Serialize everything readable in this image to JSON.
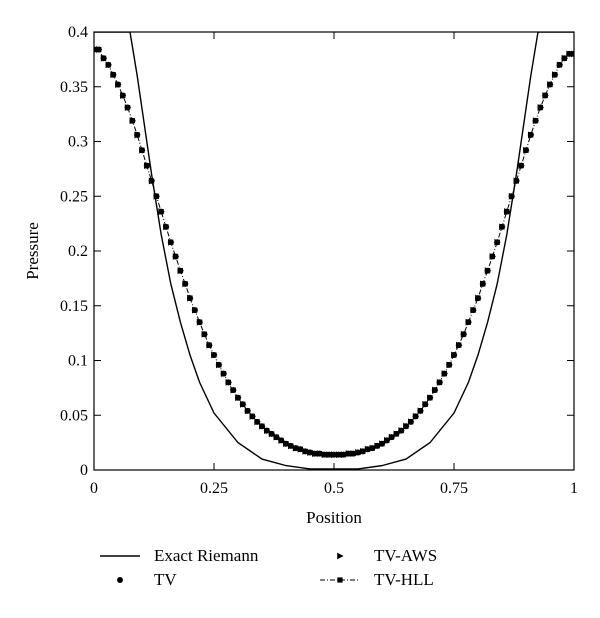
{
  "chart_data": {
    "type": "line",
    "title": "",
    "xlabel": "Position",
    "ylabel": "Pressure",
    "xlim": [
      0,
      1
    ],
    "ylim": [
      0,
      0.4
    ],
    "grid": false,
    "legend_placement": "bottom",
    "x_ticks": [
      {
        "value": 0,
        "label": "0"
      },
      {
        "value": 0.25,
        "label": "0.25"
      },
      {
        "value": 0.5,
        "label": "0.5"
      },
      {
        "value": 0.75,
        "label": "0.75"
      },
      {
        "value": 1,
        "label": "1"
      }
    ],
    "y_ticks": [
      {
        "value": 0,
        "label": "0"
      },
      {
        "value": 0.05,
        "label": "0.05"
      },
      {
        "value": 0.1,
        "label": "0.1"
      },
      {
        "value": 0.15,
        "label": "0.15"
      },
      {
        "value": 0.2,
        "label": "0.2"
      },
      {
        "value": 0.25,
        "label": "0.25"
      },
      {
        "value": 0.3,
        "label": "0.3"
      },
      {
        "value": 0.35,
        "label": "0.35"
      },
      {
        "value": 0.4,
        "label": "0.4"
      }
    ],
    "series": [
      {
        "name": "Exact Riemann",
        "style": "solid-line",
        "color": "#000000",
        "x": [
          0,
          0.05,
          0.075,
          0.09,
          0.1,
          0.12,
          0.14,
          0.16,
          0.18,
          0.2,
          0.22,
          0.25,
          0.3,
          0.35,
          0.4,
          0.45,
          0.5,
          0.55,
          0.6,
          0.65,
          0.7,
          0.75,
          0.78,
          0.8,
          0.82,
          0.84,
          0.86,
          0.88,
          0.9,
          0.91,
          0.925,
          0.95,
          1
        ],
        "y": [
          0.4,
          0.4,
          0.4,
          0.36,
          0.33,
          0.27,
          0.215,
          0.17,
          0.135,
          0.105,
          0.08,
          0.052,
          0.025,
          0.01,
          0.004,
          0.001,
          0.001,
          0.001,
          0.004,
          0.01,
          0.025,
          0.052,
          0.08,
          0.105,
          0.135,
          0.17,
          0.215,
          0.27,
          0.33,
          0.36,
          0.4,
          0.4,
          0.4
        ]
      },
      {
        "name": "TV",
        "style": "circle-markers",
        "color": "#000000",
        "x": [
          0,
          0.01,
          0.02,
          0.03,
          0.04,
          0.05,
          0.06,
          0.07,
          0.08,
          0.09,
          0.1,
          0.11,
          0.12,
          0.13,
          0.14,
          0.15,
          0.16,
          0.17,
          0.18,
          0.19,
          0.2,
          0.21,
          0.22,
          0.23,
          0.24,
          0.25,
          0.26,
          0.27,
          0.28,
          0.29,
          0.3,
          0.31,
          0.32,
          0.33,
          0.34,
          0.35,
          0.36,
          0.37,
          0.38,
          0.39,
          0.4,
          0.41,
          0.42,
          0.43,
          0.44,
          0.45,
          0.46,
          0.47,
          0.48,
          0.49,
          0.5,
          0.51,
          0.52,
          0.53,
          0.54,
          0.55,
          0.56,
          0.57,
          0.58,
          0.59,
          0.6,
          0.61,
          0.62,
          0.63,
          0.64,
          0.65,
          0.66,
          0.67,
          0.68,
          0.69,
          0.7,
          0.71,
          0.72,
          0.73,
          0.74,
          0.75,
          0.76,
          0.77,
          0.78,
          0.79,
          0.8,
          0.81,
          0.82,
          0.83,
          0.84,
          0.85,
          0.86,
          0.87,
          0.88,
          0.89,
          0.9,
          0.91,
          0.92,
          0.93,
          0.94,
          0.95,
          0.96,
          0.97,
          0.98,
          0.99,
          1
        ],
        "y": [
          0.384,
          0.384,
          0.376,
          0.37,
          0.361,
          0.352,
          0.342,
          0.331,
          0.319,
          0.306,
          0.292,
          0.278,
          0.264,
          0.25,
          0.236,
          0.222,
          0.208,
          0.195,
          0.182,
          0.17,
          0.157,
          0.146,
          0.135,
          0.124,
          0.114,
          0.105,
          0.096,
          0.088,
          0.08,
          0.073,
          0.066,
          0.06,
          0.054,
          0.049,
          0.044,
          0.04,
          0.036,
          0.033,
          0.03,
          0.027,
          0.024,
          0.022,
          0.02,
          0.019,
          0.017,
          0.016,
          0.015,
          0.015,
          0.014,
          0.014,
          0.014,
          0.014,
          0.014,
          0.015,
          0.015,
          0.016,
          0.017,
          0.019,
          0.02,
          0.022,
          0.024,
          0.027,
          0.03,
          0.033,
          0.036,
          0.04,
          0.044,
          0.049,
          0.054,
          0.06,
          0.066,
          0.073,
          0.08,
          0.088,
          0.096,
          0.105,
          0.114,
          0.124,
          0.135,
          0.146,
          0.157,
          0.17,
          0.182,
          0.195,
          0.208,
          0.222,
          0.236,
          0.25,
          0.264,
          0.278,
          0.292,
          0.306,
          0.319,
          0.331,
          0.342,
          0.352,
          0.361,
          0.37,
          0.376,
          0.38,
          0.38
        ]
      },
      {
        "name": "TV-AWS",
        "style": "triangle-markers",
        "color": "#000000",
        "x": [
          0,
          0.01,
          0.02,
          0.03,
          0.04,
          0.05,
          0.06,
          0.07,
          0.08,
          0.09,
          0.1,
          0.11,
          0.12,
          0.13,
          0.14,
          0.15,
          0.16,
          0.17,
          0.18,
          0.19,
          0.2,
          0.21,
          0.22,
          0.23,
          0.24,
          0.25,
          0.26,
          0.27,
          0.28,
          0.29,
          0.3,
          0.31,
          0.32,
          0.33,
          0.34,
          0.35,
          0.36,
          0.37,
          0.38,
          0.39,
          0.4,
          0.41,
          0.42,
          0.43,
          0.44,
          0.45,
          0.46,
          0.47,
          0.48,
          0.49,
          0.5,
          0.51,
          0.52,
          0.53,
          0.54,
          0.55,
          0.56,
          0.57,
          0.58,
          0.59,
          0.6,
          0.61,
          0.62,
          0.63,
          0.64,
          0.65,
          0.66,
          0.67,
          0.68,
          0.69,
          0.7,
          0.71,
          0.72,
          0.73,
          0.74,
          0.75,
          0.76,
          0.77,
          0.78,
          0.79,
          0.8,
          0.81,
          0.82,
          0.83,
          0.84,
          0.85,
          0.86,
          0.87,
          0.88,
          0.89,
          0.9,
          0.91,
          0.92,
          0.93,
          0.94,
          0.95,
          0.96,
          0.97,
          0.98,
          0.99,
          1
        ],
        "y": [
          0.384,
          0.384,
          0.376,
          0.37,
          0.361,
          0.352,
          0.342,
          0.331,
          0.319,
          0.306,
          0.292,
          0.278,
          0.264,
          0.25,
          0.236,
          0.222,
          0.208,
          0.195,
          0.182,
          0.17,
          0.157,
          0.146,
          0.135,
          0.124,
          0.114,
          0.105,
          0.096,
          0.088,
          0.08,
          0.073,
          0.066,
          0.06,
          0.054,
          0.049,
          0.044,
          0.04,
          0.036,
          0.033,
          0.03,
          0.027,
          0.024,
          0.022,
          0.02,
          0.019,
          0.017,
          0.016,
          0.015,
          0.015,
          0.014,
          0.014,
          0.014,
          0.014,
          0.014,
          0.015,
          0.015,
          0.016,
          0.017,
          0.019,
          0.02,
          0.022,
          0.024,
          0.027,
          0.03,
          0.033,
          0.036,
          0.04,
          0.044,
          0.049,
          0.054,
          0.06,
          0.066,
          0.073,
          0.08,
          0.088,
          0.096,
          0.105,
          0.114,
          0.124,
          0.135,
          0.146,
          0.157,
          0.17,
          0.182,
          0.195,
          0.208,
          0.222,
          0.236,
          0.25,
          0.264,
          0.278,
          0.292,
          0.306,
          0.319,
          0.331,
          0.342,
          0.352,
          0.361,
          0.37,
          0.376,
          0.38,
          0.38
        ]
      },
      {
        "name": "TV-HLL",
        "style": "dashdot-line-square-markers",
        "color": "#000000",
        "x": [
          0,
          0.01,
          0.02,
          0.03,
          0.04,
          0.05,
          0.06,
          0.07,
          0.08,
          0.09,
          0.1,
          0.11,
          0.12,
          0.13,
          0.14,
          0.15,
          0.16,
          0.17,
          0.18,
          0.19,
          0.2,
          0.21,
          0.22,
          0.23,
          0.24,
          0.25,
          0.26,
          0.27,
          0.28,
          0.29,
          0.3,
          0.31,
          0.32,
          0.33,
          0.34,
          0.35,
          0.36,
          0.37,
          0.38,
          0.39,
          0.4,
          0.41,
          0.42,
          0.43,
          0.44,
          0.45,
          0.46,
          0.47,
          0.48,
          0.49,
          0.5,
          0.51,
          0.52,
          0.53,
          0.54,
          0.55,
          0.56,
          0.57,
          0.58,
          0.59,
          0.6,
          0.61,
          0.62,
          0.63,
          0.64,
          0.65,
          0.66,
          0.67,
          0.68,
          0.69,
          0.7,
          0.71,
          0.72,
          0.73,
          0.74,
          0.75,
          0.76,
          0.77,
          0.78,
          0.79,
          0.8,
          0.81,
          0.82,
          0.83,
          0.84,
          0.85,
          0.86,
          0.87,
          0.88,
          0.89,
          0.9,
          0.91,
          0.92,
          0.93,
          0.94,
          0.95,
          0.96,
          0.97,
          0.98,
          0.99,
          1
        ],
        "y": [
          0.384,
          0.384,
          0.376,
          0.37,
          0.361,
          0.352,
          0.342,
          0.331,
          0.319,
          0.306,
          0.292,
          0.278,
          0.264,
          0.25,
          0.236,
          0.222,
          0.208,
          0.195,
          0.182,
          0.17,
          0.157,
          0.146,
          0.135,
          0.124,
          0.114,
          0.105,
          0.096,
          0.088,
          0.08,
          0.073,
          0.066,
          0.06,
          0.054,
          0.049,
          0.044,
          0.04,
          0.036,
          0.033,
          0.03,
          0.027,
          0.024,
          0.022,
          0.02,
          0.019,
          0.017,
          0.016,
          0.015,
          0.015,
          0.014,
          0.014,
          0.014,
          0.014,
          0.014,
          0.015,
          0.015,
          0.016,
          0.017,
          0.019,
          0.02,
          0.022,
          0.024,
          0.027,
          0.03,
          0.033,
          0.036,
          0.04,
          0.044,
          0.049,
          0.054,
          0.06,
          0.066,
          0.073,
          0.08,
          0.088,
          0.096,
          0.105,
          0.114,
          0.124,
          0.135,
          0.146,
          0.157,
          0.17,
          0.182,
          0.195,
          0.208,
          0.222,
          0.236,
          0.25,
          0.264,
          0.278,
          0.292,
          0.306,
          0.319,
          0.331,
          0.342,
          0.352,
          0.361,
          0.37,
          0.376,
          0.38,
          0.38
        ]
      }
    ]
  }
}
